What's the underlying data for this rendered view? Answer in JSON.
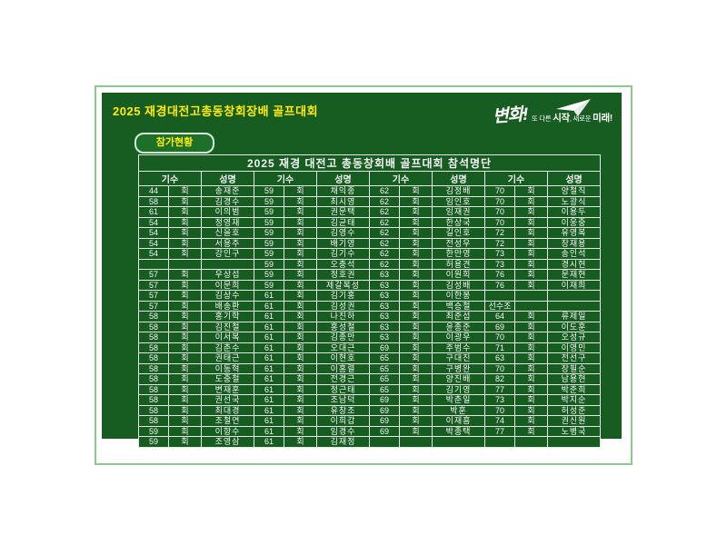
{
  "header": {
    "title": "2025 재경대전고총동창회장배 골프대회",
    "button_label": "참가현황"
  },
  "logo": {
    "script": "변화!",
    "tag_pre": "또 다른 ",
    "tag_start": "시작",
    "tag_mid": ", 새로운 ",
    "tag_end": "미래!",
    "icon": "paper-airplane-icon"
  },
  "colors": {
    "panel_green": "#175c21",
    "frame_green": "#8cc98c",
    "accent_yellow": "#ffec00",
    "text_white": "#f5f5f5"
  },
  "table": {
    "title": "2025 재경 대전고 총동창회배 골프대회 참석명단",
    "header_gisu": "기수",
    "header_name": "성명",
    "rows": [
      [
        {
          "num": "44",
          "hoe": "회",
          "name": "송재준"
        },
        {
          "num": "59",
          "hoe": "회",
          "name": "채익종"
        },
        {
          "num": "62",
          "hoe": "회",
          "name": "김정배"
        },
        {
          "num": "70",
          "hoe": "회",
          "name": "양철직"
        }
      ],
      [
        {
          "num": "58",
          "hoe": "회",
          "name": "김경수"
        },
        {
          "num": "59",
          "hoe": "회",
          "name": "최시영"
        },
        {
          "num": "62",
          "hoe": "회",
          "name": "임인호"
        },
        {
          "num": "70",
          "hoe": "회",
          "name": "노광식"
        }
      ],
      [
        {
          "num": "61",
          "hoe": "회",
          "name": "이의범"
        },
        {
          "num": "59",
          "hoe": "회",
          "name": "권문택"
        },
        {
          "num": "62",
          "hoe": "회",
          "name": "임재권"
        },
        {
          "num": "70",
          "hoe": "회",
          "name": "이용두"
        }
      ],
      [
        {
          "num": "54",
          "hoe": "회",
          "name": "정영재"
        },
        {
          "num": "59",
          "hoe": "회",
          "name": "김균태"
        },
        {
          "num": "62",
          "hoe": "회",
          "name": "한상국"
        },
        {
          "num": "70",
          "hoe": "회",
          "name": "이웅중"
        }
      ],
      [
        {
          "num": "54",
          "hoe": "회",
          "name": "신을호"
        },
        {
          "num": "59",
          "hoe": "회",
          "name": "김영수"
        },
        {
          "num": "62",
          "hoe": "회",
          "name": "길인호"
        },
        {
          "num": "72",
          "hoe": "회",
          "name": "유영복"
        }
      ],
      [
        {
          "num": "54",
          "hoe": "회",
          "name": "서용주"
        },
        {
          "num": "59",
          "hoe": "회",
          "name": "배기영"
        },
        {
          "num": "62",
          "hoe": "회",
          "name": "전성우"
        },
        {
          "num": "72",
          "hoe": "회",
          "name": "장재용"
        }
      ],
      [
        {
          "num": "54",
          "hoe": "회",
          "name": "강인구"
        },
        {
          "num": "59",
          "hoe": "회",
          "name": "김기수"
        },
        {
          "num": "62",
          "hoe": "회",
          "name": "한만영"
        },
        {
          "num": "73",
          "hoe": "회",
          "name": "송인석"
        }
      ],
      [
        {
          "num": "",
          "hoe": "",
          "name": ""
        },
        {
          "num": "59",
          "hoe": "회",
          "name": "오충석"
        },
        {
          "num": "62",
          "hoe": "회",
          "name": "허용견"
        },
        {
          "num": "73",
          "hoe": "회",
          "name": "경시현"
        }
      ],
      [
        {
          "num": "57",
          "hoe": "회",
          "name": "우상섭"
        },
        {
          "num": "59",
          "hoe": "회",
          "name": "정호권"
        },
        {
          "num": "63",
          "hoe": "회",
          "name": "이원희"
        },
        {
          "num": "76",
          "hoe": "회",
          "name": "문재현"
        }
      ],
      [
        {
          "num": "57",
          "hoe": "회",
          "name": "이문희"
        },
        {
          "num": "59",
          "hoe": "회",
          "name": "제갈복성"
        },
        {
          "num": "63",
          "hoe": "회",
          "name": "김성배"
        },
        {
          "num": "76",
          "hoe": "회",
          "name": "이재희"
        }
      ],
      [
        {
          "num": "57",
          "hoe": "회",
          "name": "김상수"
        },
        {
          "num": "61",
          "hoe": "회",
          "name": "김기홍"
        },
        {
          "num": "63",
          "hoe": "회",
          "name": "이한봉"
        },
        {
          "num": "",
          "hoe": "",
          "name": ""
        }
      ],
      [
        {
          "num": "57",
          "hoe": "회",
          "name": "배송환"
        },
        {
          "num": "61",
          "hoe": "회",
          "name": "김성권"
        },
        {
          "num": "63",
          "hoe": "회",
          "name": "백승철"
        },
        {
          "num": "선수조",
          "hoe": "",
          "name": ""
        }
      ],
      [
        {
          "num": "58",
          "hoe": "회",
          "name": "홍기학"
        },
        {
          "num": "61",
          "hoe": "회",
          "name": "나진하"
        },
        {
          "num": "63",
          "hoe": "회",
          "name": "최준섭"
        },
        {
          "num": "64",
          "hoe": "회",
          "name": "류제일"
        }
      ],
      [
        {
          "num": "58",
          "hoe": "회",
          "name": "김진철"
        },
        {
          "num": "61",
          "hoe": "회",
          "name": "홍성철"
        },
        {
          "num": "63",
          "hoe": "회",
          "name": "윤종준"
        },
        {
          "num": "69",
          "hoe": "회",
          "name": "이도훈"
        }
      ],
      [
        {
          "num": "58",
          "hoe": "회",
          "name": "이서복"
        },
        {
          "num": "61",
          "hoe": "회",
          "name": "김종만"
        },
        {
          "num": "63",
          "hoe": "회",
          "name": "이광우"
        },
        {
          "num": "70",
          "hoe": "회",
          "name": "오성규"
        }
      ],
      [
        {
          "num": "58",
          "hoe": "회",
          "name": "김춘수"
        },
        {
          "num": "61",
          "hoe": "회",
          "name": "오대근"
        },
        {
          "num": "69",
          "hoe": "회",
          "name": "주범수"
        },
        {
          "num": "71",
          "hoe": "회",
          "name": "이영민"
        }
      ],
      [
        {
          "num": "58",
          "hoe": "회",
          "name": "권태근"
        },
        {
          "num": "61",
          "hoe": "회",
          "name": "이현호"
        },
        {
          "num": "65",
          "hoe": "회",
          "name": "구대진"
        },
        {
          "num": "63",
          "hoe": "회",
          "name": "전선구"
        }
      ],
      [
        {
          "num": "58",
          "hoe": "회",
          "name": "이동혁"
        },
        {
          "num": "61",
          "hoe": "회",
          "name": "이홍렬"
        },
        {
          "num": "65",
          "hoe": "회",
          "name": "구병완"
        },
        {
          "num": "70",
          "hoe": "회",
          "name": "장필순"
        }
      ],
      [
        {
          "num": "58",
          "hoe": "회",
          "name": "도중철"
        },
        {
          "num": "61",
          "hoe": "회",
          "name": "전경근"
        },
        {
          "num": "65",
          "hoe": "회",
          "name": "양진배"
        },
        {
          "num": "82",
          "hoe": "회",
          "name": "남용현"
        }
      ],
      [
        {
          "num": "58",
          "hoe": "회",
          "name": "변재훈"
        },
        {
          "num": "61",
          "hoe": "회",
          "name": "정근태"
        },
        {
          "num": "65",
          "hoe": "회",
          "name": "김기영"
        },
        {
          "num": "77",
          "hoe": "회",
          "name": "박준희"
        }
      ],
      [
        {
          "num": "58",
          "hoe": "회",
          "name": "권선국"
        },
        {
          "num": "61",
          "hoe": "회",
          "name": "조남덕"
        },
        {
          "num": "69",
          "hoe": "회",
          "name": "박춘일"
        },
        {
          "num": "73",
          "hoe": "회",
          "name": "박지순"
        }
      ],
      [
        {
          "num": "58",
          "hoe": "회",
          "name": "최대경"
        },
        {
          "num": "61",
          "hoe": "회",
          "name": "유창조"
        },
        {
          "num": "69",
          "hoe": "회",
          "name": "박훈"
        },
        {
          "num": "70",
          "hoe": "회",
          "name": "허성준"
        }
      ],
      [
        {
          "num": "58",
          "hoe": "회",
          "name": "조철연"
        },
        {
          "num": "61",
          "hoe": "회",
          "name": "이희갑"
        },
        {
          "num": "69",
          "hoe": "회",
          "name": "이재흠"
        },
        {
          "num": "74",
          "hoe": "회",
          "name": "권신원"
        }
      ],
      [
        {
          "num": "59",
          "hoe": "회",
          "name": "이항수"
        },
        {
          "num": "61",
          "hoe": "회",
          "name": "임경수"
        },
        {
          "num": "69",
          "hoe": "회",
          "name": "박종택"
        },
        {
          "num": "77",
          "hoe": "회",
          "name": "노병국"
        }
      ],
      [
        {
          "num": "59",
          "hoe": "회",
          "name": "조영삼"
        },
        {
          "num": "61",
          "hoe": "회",
          "name": "김재정"
        },
        {
          "num": "",
          "hoe": "",
          "name": ""
        },
        {
          "num": "",
          "hoe": "",
          "name": ""
        }
      ]
    ]
  }
}
